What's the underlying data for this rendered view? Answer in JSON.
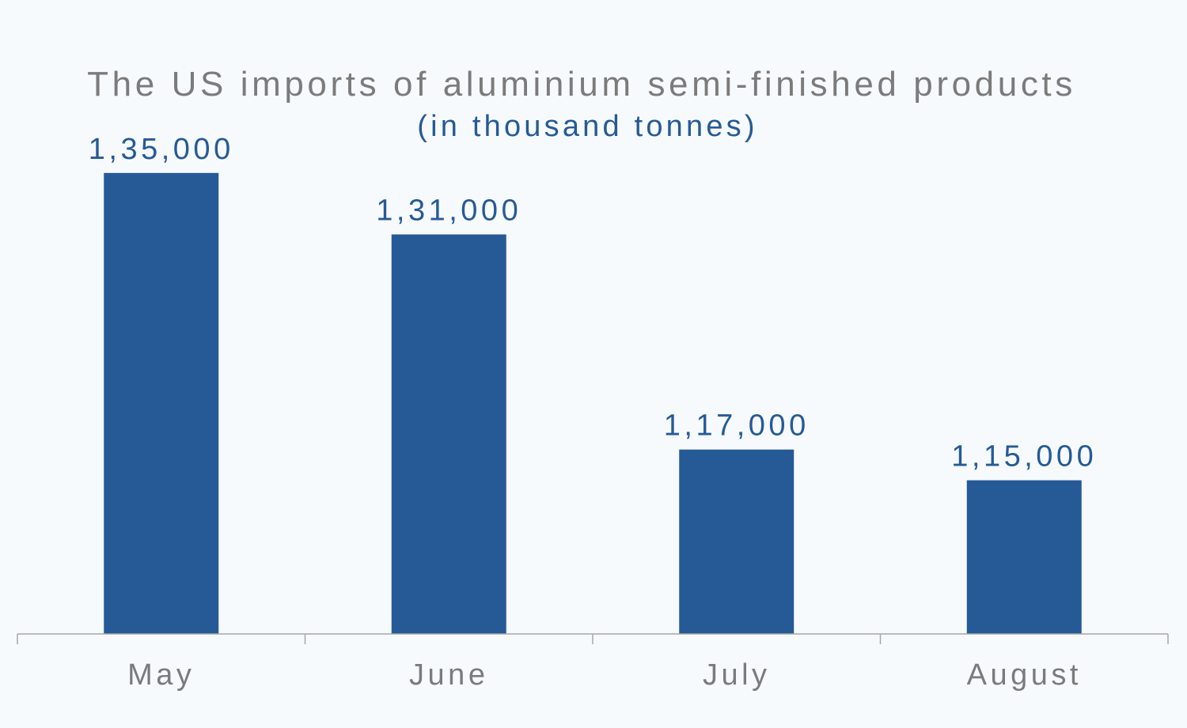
{
  "chart_data": {
    "type": "bar",
    "title": "The US imports of aluminium semi-finished products",
    "subtitle": "(in thousand tonnes)",
    "categories": [
      "May",
      "June",
      "July",
      "August"
    ],
    "values": [
      135000,
      131000,
      117000,
      115000
    ],
    "value_labels": [
      "1,35,000",
      "1,31,000",
      "1,17,000",
      "1,15,000"
    ],
    "xlabel": "",
    "ylabel": "",
    "ylim": [
      105000,
      140000
    ],
    "grid": false,
    "legend": "none",
    "colors": {
      "bar": "#255a97",
      "title": "#7b7b7b",
      "subtitle": "#255a96",
      "value_label": "#255a96",
      "category_label": "#7b7b7b",
      "axis": "#a6a6a6",
      "background": "#f7fafd"
    }
  }
}
